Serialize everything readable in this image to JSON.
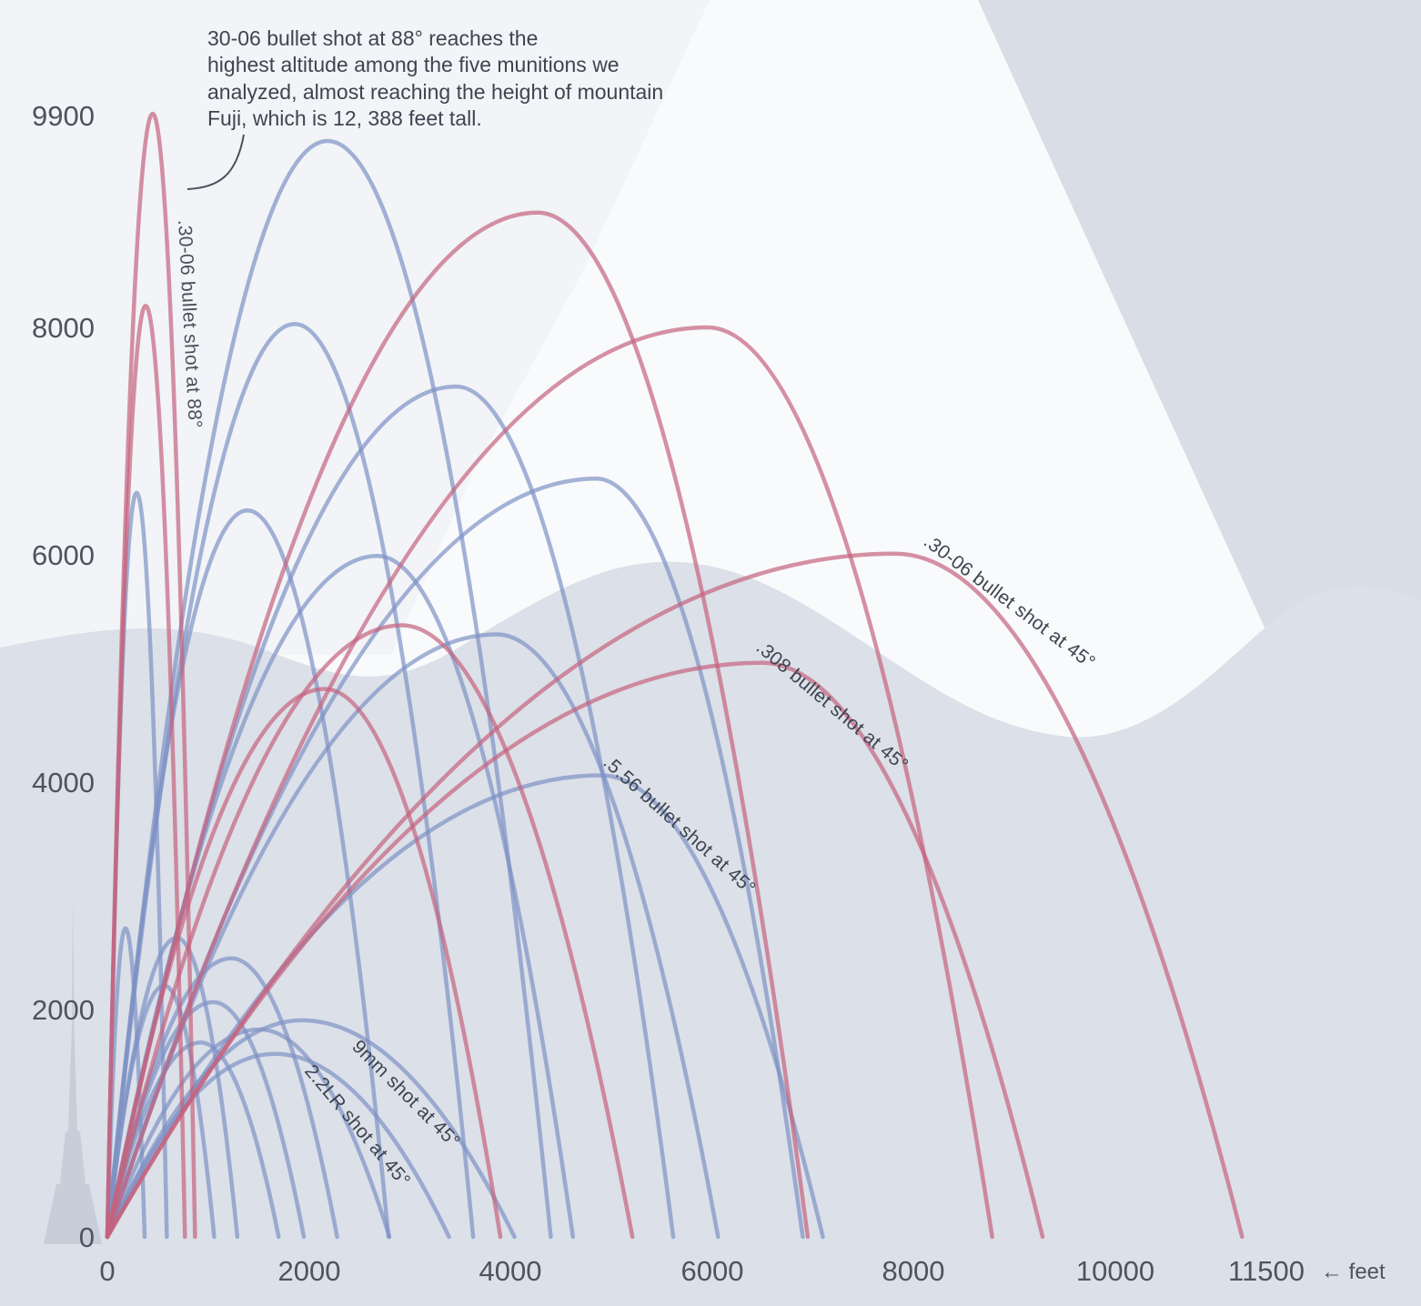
{
  "annotation": {
    "text": "30-06 bullet shot at 88° reaches the\nhighest altitude among the five munitions we\nanalyzed, almost reaching the height of mountain\nFuji, which is 12, 388 feet tall."
  },
  "chart_data": {
    "type": "line",
    "description": "Trajectories (altitude vs horizontal distance, feet) of five munitions fired at various angles",
    "x_ticks": [
      "0",
      "2000",
      "4000",
      "6000",
      "8000",
      "10000",
      "11500"
    ],
    "x_tick_values": [
      0,
      2000,
      4000,
      6000,
      8000,
      10000,
      11500
    ],
    "y_ticks": [
      "9900",
      "8000",
      "6000",
      "4000",
      "2000",
      "0"
    ],
    "y_tick_values": [
      9900,
      8000,
      6000,
      4000,
      2000,
      0
    ],
    "x_axis_suffix": "← feet",
    "xlim": [
      0,
      11500
    ],
    "ylim": [
      0,
      9900
    ],
    "colors": {
      "red": "#c4637d",
      "blue": "#7d92c4"
    },
    "curve_labels": [
      {
        "text": ".30-06 bullet shot at 88°"
      },
      {
        "text": ".30-06 bullet shot at 45°"
      },
      {
        "text": ".308 bullet shot at 45°"
      },
      {
        "text": ".5.56 bullet shot at 45°"
      },
      {
        "text": "9mm shot at 45°"
      },
      {
        "text": "2.2LR shot at 45°"
      }
    ],
    "arcs": [
      {
        "color": "blue",
        "apex_x": 180,
        "apex_y": 2715,
        "land_x": 370
      },
      {
        "color": "blue",
        "apex_x": 690,
        "apex_y": 2630,
        "land_x": 1290
      },
      {
        "color": "blue",
        "apex_x": 1230,
        "apex_y": 2450,
        "land_x": 2280
      },
      {
        "color": "blue",
        "apex_x": 565,
        "apex_y": 2210,
        "land_x": 1060
      },
      {
        "color": "blue",
        "apex_x": 1050,
        "apex_y": 2065,
        "land_x": 1950
      },
      {
        "color": "blue",
        "apex_x": 1510,
        "apex_y": 1825,
        "land_x": 2800
      },
      {
        "color": "blue",
        "apex_x": 925,
        "apex_y": 1710,
        "land_x": 1700
      },
      {
        "color": "blue",
        "apex_x": 1660,
        "apex_y": 1610,
        "land_x": 3390,
        "label": "2.2LR shot at 45°"
      },
      {
        "color": "blue",
        "apex_x": 1930,
        "apex_y": 1905,
        "land_x": 4040,
        "label": "9mm shot at 45°"
      },
      {
        "color": "blue",
        "apex_x": 290,
        "apex_y": 6545,
        "land_x": 590
      },
      {
        "color": "blue",
        "apex_x": 1390,
        "apex_y": 6390,
        "land_x": 2790
      },
      {
        "color": "blue",
        "apex_x": 2680,
        "apex_y": 5990,
        "land_x": 4620
      },
      {
        "color": "blue",
        "apex_x": 3860,
        "apex_y": 5300,
        "land_x": 6060
      },
      {
        "color": "blue",
        "apex_x": 4850,
        "apex_y": 6670,
        "land_x": 6900
      },
      {
        "color": "blue",
        "apex_x": 3460,
        "apex_y": 7480,
        "land_x": 5615
      },
      {
        "color": "blue",
        "apex_x": 1860,
        "apex_y": 8030,
        "land_x": 3630
      },
      {
        "color": "blue",
        "apex_x": 2185,
        "apex_y": 9640,
        "land_x": 4400
      },
      {
        "color": "blue",
        "apex_x": 4900,
        "apex_y": 4060,
        "land_x": 7100,
        "label": ".5.56 bullet shot at 45°"
      },
      {
        "color": "red",
        "apex_x": 2155,
        "apex_y": 4820,
        "land_x": 3900
      },
      {
        "color": "red",
        "apex_x": 2920,
        "apex_y": 5380,
        "land_x": 5210
      },
      {
        "color": "red",
        "apex_x": 380,
        "apex_y": 8190,
        "land_x": 770
      },
      {
        "color": "red",
        "apex_x": 4270,
        "apex_y": 9010,
        "land_x": 6950
      },
      {
        "color": "red",
        "apex_x": 5955,
        "apex_y": 8000,
        "land_x": 8780
      },
      {
        "color": "red",
        "apex_x": 450,
        "apex_y": 9880,
        "land_x": 870,
        "label": ".30-06 bullet shot at 88°"
      },
      {
        "color": "red",
        "apex_x": 6495,
        "apex_y": 5050,
        "land_x": 9280,
        "label": ".308 bullet shot at 45°"
      },
      {
        "color": "red",
        "apex_x": 7815,
        "apex_y": 6010,
        "land_x": 11260,
        "label": ".30-06 bullet shot at 45°"
      }
    ]
  }
}
